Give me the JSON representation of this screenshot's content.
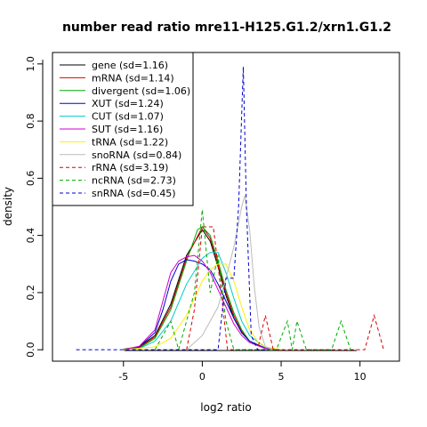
{
  "chart_data": {
    "type": "line",
    "title": "number read ratio mre11-H125.G1.2/xrn1.G1.2",
    "xlabel": "log2 ratio",
    "ylabel": "density",
    "xlim": [
      -9.5,
      12.5
    ],
    "ylim": [
      -0.04,
      1.04
    ],
    "x_ticks": [
      -5,
      0,
      5,
      10
    ],
    "y_ticks": [
      0.0,
      0.2,
      0.4,
      0.6,
      0.8,
      1.0
    ],
    "x_tick_labels": [
      "-5",
      "0",
      "5",
      "10"
    ],
    "y_tick_labels": [
      "0.0",
      "0.2",
      "0.4",
      "0.6",
      "0.8",
      "1.0"
    ],
    "grid": false,
    "legend_position": "top-left",
    "series": [
      {
        "name": "gene (sd=1.16)",
        "color": "#000000",
        "dash": "solid",
        "points": [
          [
            -5,
            0.002
          ],
          [
            -4,
            0.01
          ],
          [
            -3,
            0.05
          ],
          [
            -2,
            0.16
          ],
          [
            -1,
            0.33
          ],
          [
            0,
            0.42
          ],
          [
            0.5,
            0.38
          ],
          [
            1,
            0.29
          ],
          [
            1.5,
            0.19
          ],
          [
            2,
            0.11
          ],
          [
            2.5,
            0.06
          ],
          [
            3,
            0.03
          ],
          [
            3.5,
            0.015
          ],
          [
            4,
            0.005
          ],
          [
            5,
            0.0
          ]
        ]
      },
      {
        "name": "mRNA (sd=1.14)",
        "color": "#dd0000",
        "dash": "solid",
        "points": [
          [
            -5,
            0.0
          ],
          [
            -4,
            0.008
          ],
          [
            -3,
            0.045
          ],
          [
            -2,
            0.15
          ],
          [
            -1,
            0.32
          ],
          [
            0,
            0.43
          ],
          [
            0.5,
            0.39
          ],
          [
            1,
            0.3
          ],
          [
            1.5,
            0.2
          ],
          [
            2,
            0.12
          ],
          [
            2.5,
            0.065
          ],
          [
            3,
            0.03
          ],
          [
            4,
            0.005
          ],
          [
            5,
            0.0
          ]
        ]
      },
      {
        "name": "divergent (sd=1.06)",
        "color": "#00aa00",
        "dash": "solid",
        "points": [
          [
            -5,
            0.0
          ],
          [
            -4,
            0.005
          ],
          [
            -3,
            0.04
          ],
          [
            -2,
            0.14
          ],
          [
            -1,
            0.31
          ],
          [
            -0.3,
            0.42
          ],
          [
            0,
            0.43
          ],
          [
            0.5,
            0.4
          ],
          [
            1,
            0.31
          ],
          [
            1.5,
            0.21
          ],
          [
            2,
            0.13
          ],
          [
            2.5,
            0.07
          ],
          [
            3,
            0.03
          ],
          [
            4,
            0.004
          ],
          [
            5,
            0.0
          ]
        ]
      },
      {
        "name": "XUT (sd=1.24)",
        "color": "#0000cc",
        "dash": "solid",
        "points": [
          [
            -5,
            0.0
          ],
          [
            -4,
            0.01
          ],
          [
            -3,
            0.06
          ],
          [
            -2.5,
            0.14
          ],
          [
            -2,
            0.24
          ],
          [
            -1.5,
            0.3
          ],
          [
            -1,
            0.315
          ],
          [
            -0.5,
            0.31
          ],
          [
            0,
            0.3
          ],
          [
            0.5,
            0.28
          ],
          [
            1,
            0.23
          ],
          [
            1.5,
            0.17
          ],
          [
            2,
            0.11
          ],
          [
            2.5,
            0.06
          ],
          [
            3,
            0.03
          ],
          [
            4,
            0.005
          ],
          [
            5,
            0.0
          ]
        ]
      },
      {
        "name": "CUT (sd=1.07)",
        "color": "#00cccc",
        "dash": "solid",
        "points": [
          [
            -5,
            0.0
          ],
          [
            -4,
            0.004
          ],
          [
            -3,
            0.03
          ],
          [
            -2,
            0.1
          ],
          [
            -1,
            0.23
          ],
          [
            0,
            0.32
          ],
          [
            0.5,
            0.34
          ],
          [
            1,
            0.34
          ],
          [
            1.5,
            0.27
          ],
          [
            2,
            0.18
          ],
          [
            2.5,
            0.1
          ],
          [
            3,
            0.05
          ],
          [
            4,
            0.008
          ],
          [
            5,
            0.0
          ]
        ]
      },
      {
        "name": "SUT (sd=1.16)",
        "color": "#cc00cc",
        "dash": "solid",
        "points": [
          [
            -5,
            0.0
          ],
          [
            -4,
            0.012
          ],
          [
            -3,
            0.07
          ],
          [
            -2.5,
            0.17
          ],
          [
            -2,
            0.27
          ],
          [
            -1.5,
            0.31
          ],
          [
            -1,
            0.325
          ],
          [
            -0.5,
            0.33
          ],
          [
            0,
            0.31
          ],
          [
            0.5,
            0.27
          ],
          [
            1,
            0.21
          ],
          [
            1.5,
            0.15
          ],
          [
            2,
            0.09
          ],
          [
            2.5,
            0.05
          ],
          [
            3,
            0.025
          ],
          [
            4,
            0.004
          ],
          [
            5,
            0.0
          ]
        ]
      },
      {
        "name": "tRNA (sd=1.22)",
        "color": "#ffee00",
        "dash": "solid",
        "points": [
          [
            -5,
            0.0
          ],
          [
            -3,
            0.01
          ],
          [
            -2,
            0.04
          ],
          [
            -1,
            0.12
          ],
          [
            0,
            0.24
          ],
          [
            0.5,
            0.28
          ],
          [
            1,
            0.3
          ],
          [
            1.5,
            0.3
          ],
          [
            2,
            0.24
          ],
          [
            2.5,
            0.15
          ],
          [
            3,
            0.07
          ],
          [
            3.5,
            0.03
          ],
          [
            4,
            0.01
          ],
          [
            5,
            0.0
          ]
        ]
      },
      {
        "name": "snoRNA (sd=0.84)",
        "color": "#bbbbbb",
        "dash": "solid",
        "points": [
          [
            -1,
            0.0
          ],
          [
            0,
            0.05
          ],
          [
            1,
            0.15
          ],
          [
            1.5,
            0.25
          ],
          [
            2,
            0.36
          ],
          [
            2.5,
            0.5
          ],
          [
            2.7,
            0.54
          ],
          [
            3,
            0.42
          ],
          [
            3.3,
            0.22
          ],
          [
            3.6,
            0.08
          ],
          [
            4,
            0.01
          ],
          [
            4.5,
            0.0
          ]
        ]
      },
      {
        "name": "rRNA (sd=3.19)",
        "color": "#dd0000",
        "dash": "dashed",
        "points": [
          [
            -1,
            0.0
          ],
          [
            -0.5,
            0.14
          ],
          [
            0,
            0.43
          ],
          [
            0.7,
            0.43
          ],
          [
            1.2,
            0.2
          ],
          [
            1.6,
            0.0
          ],
          [
            3.5,
            0.0
          ],
          [
            4,
            0.12
          ],
          [
            4.5,
            0.0
          ],
          [
            10.3,
            0.0
          ],
          [
            10.9,
            0.12
          ],
          [
            11.5,
            0.0
          ]
        ]
      },
      {
        "name": "ncRNA (sd=2.73)",
        "color": "#00aa00",
        "dash": "dashed",
        "points": [
          [
            -3,
            0.0
          ],
          [
            -2,
            0.1
          ],
          [
            -1.5,
            0.0
          ],
          [
            -0.5,
            0.2
          ],
          [
            0,
            0.49
          ],
          [
            0.5,
            0.2
          ],
          [
            1,
            0.33
          ],
          [
            1.5,
            0.1
          ],
          [
            2,
            0.0
          ],
          [
            4,
            0.0
          ],
          [
            4.7,
            0.0
          ],
          [
            5.4,
            0.1
          ],
          [
            5.7,
            0.0
          ],
          [
            6,
            0.1
          ],
          [
            6.6,
            0.0
          ],
          [
            8.2,
            0.0
          ],
          [
            8.8,
            0.1
          ],
          [
            9.4,
            0.0
          ]
        ]
      },
      {
        "name": "snRNA (sd=0.45)",
        "color": "#0000cc",
        "dash": "dashed",
        "points": [
          [
            -8,
            0.0
          ],
          [
            0,
            0.0
          ],
          [
            1,
            0.0
          ],
          [
            1.5,
            0.25
          ],
          [
            2,
            0.25
          ],
          [
            2.3,
            0.5
          ],
          [
            2.6,
            0.99
          ],
          [
            2.8,
            0.5
          ],
          [
            3.1,
            0.05
          ],
          [
            3.5,
            0.0
          ],
          [
            4,
            0.0
          ]
        ]
      }
    ]
  }
}
